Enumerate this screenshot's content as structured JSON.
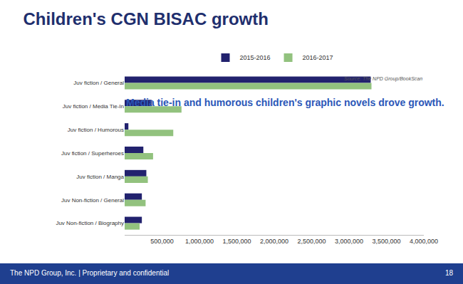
{
  "chart_data": {
    "type": "bar",
    "orientation": "horizontal",
    "title": "Children's CGN BISAC growth",
    "subtitle": "Media tie-in and humorous children's graphic novels drove growth.",
    "categories": [
      "Juv fiction / General",
      "Juv fiction / Media Tie-In",
      "Juv fiction / Humorous",
      "Juv fiction / Superheroes",
      "Juv fiction / Manga",
      "Juv Non-fiction / General",
      "Juv Non-fiction / Biography"
    ],
    "series": [
      {
        "name": "2015-2016",
        "color": "#22226e",
        "values": [
          3290000,
          360000,
          50000,
          250000,
          290000,
          230000,
          230000
        ]
      },
      {
        "name": "2016-2017",
        "color": "#92c27e",
        "values": [
          3300000,
          760000,
          650000,
          380000,
          310000,
          280000,
          200000
        ]
      }
    ],
    "xlim": [
      0,
      4000000
    ],
    "xticks": [
      {
        "value": 500000,
        "label": "500,000"
      },
      {
        "value": 1000000,
        "label": "1,000,000"
      },
      {
        "value": 1500000,
        "label": "1,500,000"
      },
      {
        "value": 2000000,
        "label": "2,000,000"
      },
      {
        "value": 2500000,
        "label": "2,500,000"
      },
      {
        "value": 3000000,
        "label": "3,000,000"
      },
      {
        "value": 3500000,
        "label": "3,500,000"
      },
      {
        "value": 4000000,
        "label": "4,000,000"
      }
    ],
    "grid": false,
    "legend": "top",
    "annotations": [
      "Source: The NPD Group/BookScan",
      "The NPD Group, Inc. | Proprietary and confidential",
      "18"
    ]
  }
}
